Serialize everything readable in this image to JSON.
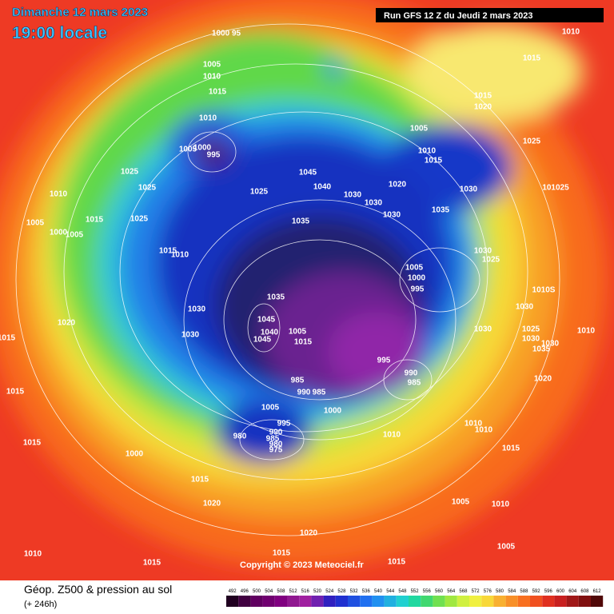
{
  "header": {
    "date": "Dimanche 12 mars 2023",
    "time": "19:00 locale",
    "run": "Run GFS 12 Z du Jeudi 2 mars 2023"
  },
  "footer": {
    "copyright": "Copyright © 2023 Meteociel.fr",
    "title": "Géop. Z500 & pression au sol",
    "lead": "(+ 246h)"
  },
  "colorbar": {
    "labels": [
      "492",
      "496",
      "500",
      "504",
      "508",
      "512",
      "516",
      "520",
      "524",
      "528",
      "532",
      "536",
      "540",
      "544",
      "548",
      "552",
      "556",
      "560",
      "564",
      "568",
      "572",
      "576",
      "580",
      "584",
      "588",
      "592",
      "596",
      "600",
      "604",
      "608",
      "612"
    ]
  },
  "isobar_labels": [
    "1000 95",
    "1010",
    "1015",
    "1005",
    "1010",
    "1015",
    "1015",
    "1020",
    "1010",
    "1005",
    "1025",
    "1005",
    "1000",
    "995",
    "1010",
    "1015",
    "1025",
    "1045",
    "1020",
    "1030",
    "1040",
    "1025",
    "1025",
    "1030",
    "1010",
    "101025",
    "1005",
    "1015",
    "1025",
    "1030",
    "1030",
    "1035",
    "1035",
    "1000",
    "1005",
    "1015",
    "1010",
    "1030",
    "1025",
    "1005",
    "1000",
    "995",
    "1010S",
    "1035",
    "1030",
    "1030",
    "1045",
    "1040",
    "1045",
    "1005",
    "1015",
    "1030",
    "1030",
    "1025",
    "1010",
    "1030",
    "1030",
    "1035",
    "1020",
    "1015",
    "995",
    "990",
    "985",
    "1020",
    "985",
    "990",
    "985",
    "1015",
    "1005",
    "1000",
    "995",
    "990",
    "980",
    "985",
    "980",
    "975",
    "1010",
    "1010",
    "1010",
    "1015",
    "1000",
    "1015",
    "1015",
    "1005",
    "1010",
    "1020",
    "1020",
    "1005",
    "1010",
    "1015",
    "1015",
    "1015"
  ]
}
